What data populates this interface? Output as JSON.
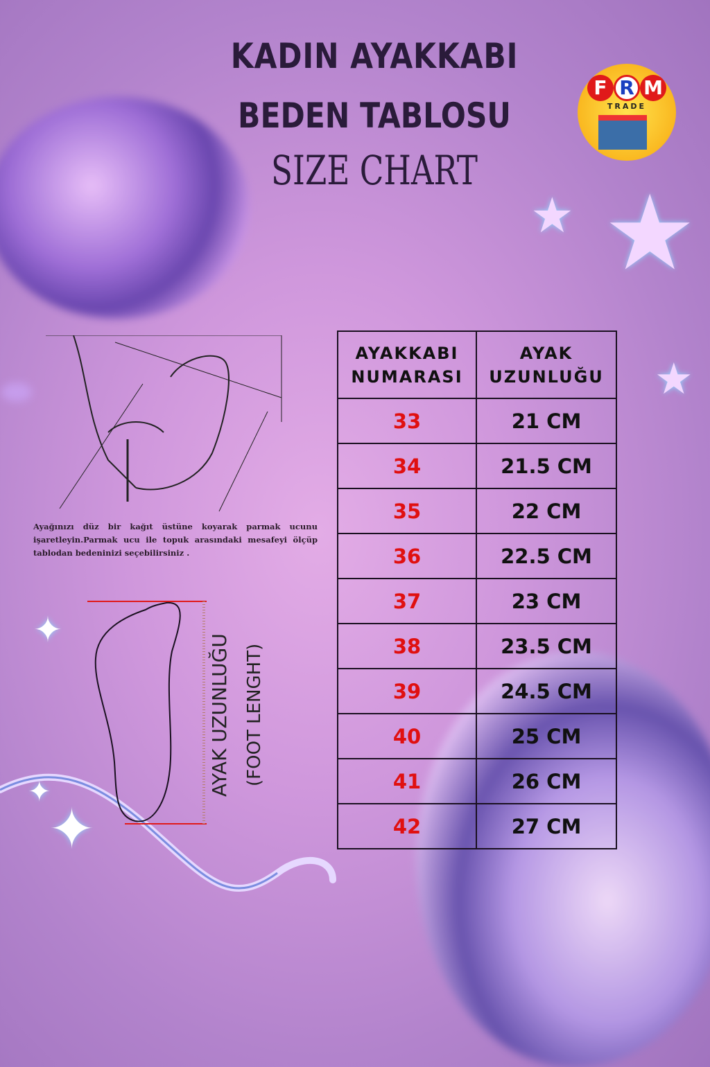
{
  "header": {
    "title_line1": "KADIN AYAKKABI",
    "title_line2": "BEDEN TABLOSU",
    "title_line3": "SIZE CHART"
  },
  "logo": {
    "letters": [
      "F",
      "R",
      "M"
    ],
    "subtitle": "TRADE",
    "icon": "shop-laptop-icon"
  },
  "instructions": "Ayağınızı düz bir kağıt üstüne koyarak parmak ucunu işaretleyin.Parmak ucu ile topuk arasındaki mesafeyi ölçüp tablodan bedeninizi seçebilirsiniz .",
  "foot_diagram": {
    "label_tr": "AYAK UZUNLUĞU",
    "label_en": "(FOOT LENGHT)"
  },
  "table": {
    "headers": [
      "AYAKKABI NUMARASI",
      "AYAK UZUNLUĞU"
    ],
    "header_lines": [
      [
        "AYAKKABI",
        "NUMARASI"
      ],
      [
        "AYAK",
        "UZUNLUĞU"
      ]
    ],
    "rows": [
      {
        "size": "33",
        "length": "21 CM"
      },
      {
        "size": "34",
        "length": "21.5 CM"
      },
      {
        "size": "35",
        "length": "22 CM"
      },
      {
        "size": "36",
        "length": "22.5 CM"
      },
      {
        "size": "37",
        "length": "23 CM"
      },
      {
        "size": "38",
        "length": "23.5 CM"
      },
      {
        "size": "39",
        "length": "24.5 CM"
      },
      {
        "size": "40",
        "length": "25 CM"
      },
      {
        "size": "41",
        "length": "26 CM"
      },
      {
        "size": "42",
        "length": "27 CM"
      }
    ]
  },
  "colors": {
    "size_number": "#e01010",
    "background": "#c994d8",
    "title": "#2a1b3a"
  }
}
